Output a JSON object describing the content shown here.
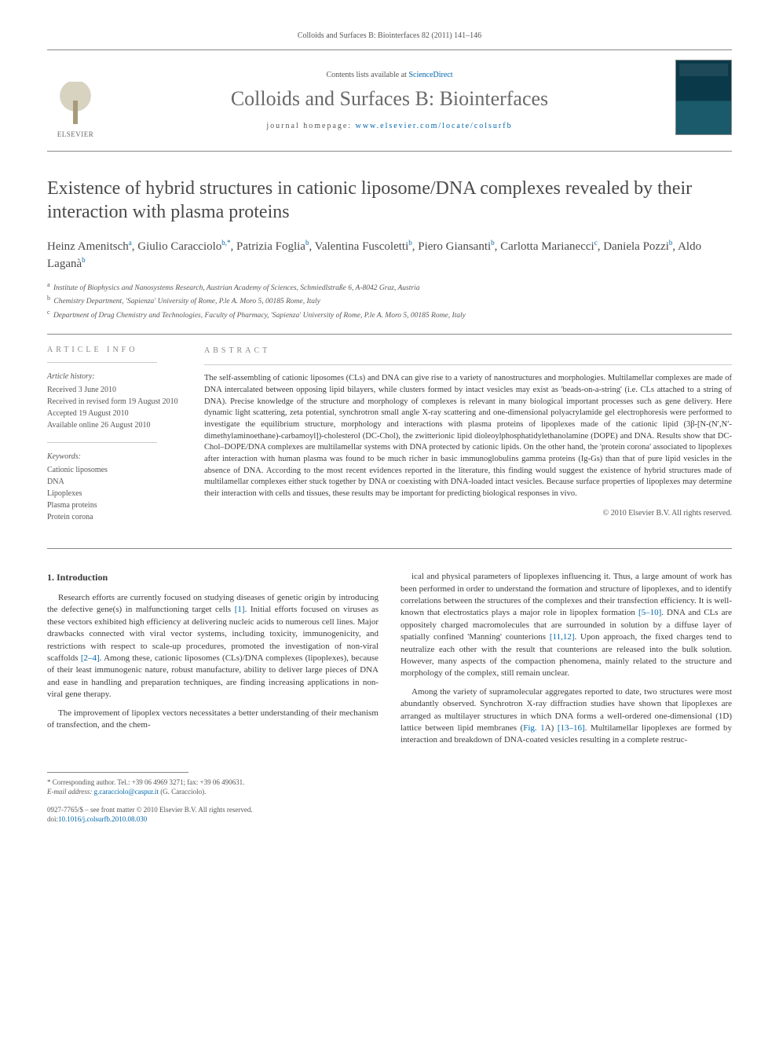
{
  "citation": "Colloids and Surfaces B: Biointerfaces 82 (2011) 141–146",
  "masthead": {
    "elsevier_label": "ELSEVIER",
    "contents_prefix": "Contents lists available at ",
    "contents_link": "ScienceDirect",
    "journal_name": "Colloids and Surfaces B: Biointerfaces",
    "homepage_prefix": "journal homepage: ",
    "homepage_url": "www.elsevier.com/locate/colsurfb"
  },
  "title": "Existence of hybrid structures in cationic liposome/DNA complexes revealed by their interaction with plasma proteins",
  "authors_html": "Heinz Amenitsch<sup>a</sup>, Giulio Caracciolo<sup>b,*</sup>, Patrizia Foglia<sup>b</sup>, Valentina Fuscoletti<sup>b</sup>, Piero Giansanti<sup>b</sup>, Carlotta Marianecci<sup>c</sup>, Daniela Pozzi<sup>b</sup>, Aldo Laganà<sup>b</sup>",
  "affiliations": [
    {
      "sup": "a",
      "text": "Institute of Biophysics and Nanosystems Research, Austrian Academy of Sciences, Schmiedlstraße 6, A-8042 Graz, Austria"
    },
    {
      "sup": "b",
      "text": "Chemistry Department, 'Sapienza' University of Rome, P.le A. Moro 5, 00185 Rome, Italy"
    },
    {
      "sup": "c",
      "text": "Department of Drug Chemistry and Technologies, Faculty of Pharmacy, 'Sapienza' University of Rome, P.le A. Moro 5, 00185 Rome, Italy"
    }
  ],
  "article_info": {
    "heading": "article info",
    "history_label": "Article history:",
    "history": [
      "Received 3 June 2010",
      "Received in revised form 19 August 2010",
      "Accepted 19 August 2010",
      "Available online 26 August 2010"
    ],
    "keywords_label": "Keywords:",
    "keywords": [
      "Cationic liposomes",
      "DNA",
      "Lipoplexes",
      "Plasma proteins",
      "Protein corona"
    ]
  },
  "abstract": {
    "heading": "abstract",
    "text": "The self-assembling of cationic liposomes (CLs) and DNA can give rise to a variety of nanostructures and morphologies. Multilamellar complexes are made of DNA intercalated between opposing lipid bilayers, while clusters formed by intact vesicles may exist as 'beads-on-a-string' (i.e. CLs attached to a string of DNA). Precise knowledge of the structure and morphology of complexes is relevant in many biological important processes such as gene delivery. Here dynamic light scattering, zeta potential, synchrotron small angle X-ray scattering and one-dimensional polyacrylamide gel electrophoresis were performed to investigate the equilibrium structure, morphology and interactions with plasma proteins of lipoplexes made of the cationic lipid (3β-[N-(N′,N′-dimethylaminoethane)-carbamoyl])-cholesterol (DC-Chol), the zwitterionic lipid dioleoylphosphatidylethanolamine (DOPE) and DNA. Results show that DC-Chol–DOPE/DNA complexes are multilamellar systems with DNA protected by cationic lipids. On the other hand, the 'protein corona' associated to lipoplexes after interaction with human plasma was found to be much richer in basic immunoglobulins gamma proteins (Ig-Gs) than that of pure lipid vesicles in the absence of DNA. According to the most recent evidences reported in the literature, this finding would suggest the existence of hybrid structures made of multilamellar complexes either stuck together by DNA or coexisting with DNA-loaded intact vesicles. Because surface properties of lipoplexes may determine their interaction with cells and tissues, these results may be important for predicting biological responses in vivo.",
    "copyright": "© 2010 Elsevier B.V. All rights reserved."
  },
  "body": {
    "section1_heading": "1. Introduction",
    "p1": "Research efforts are currently focused on studying diseases of genetic origin by introducing the defective gene(s) in malfunctioning target cells [1]. Initial efforts focused on viruses as these vectors exhibited high efficiency at delivering nucleic acids to numerous cell lines. Major drawbacks connected with viral vector systems, including toxicity, immunogenicity, and restrictions with respect to scale-up procedures, promoted the investigation of non-viral scaffolds [2–4]. Among these, cationic liposomes (CLs)/DNA complexes (lipoplexes), because of their least immunogenic nature, robust manufacture, ability to deliver large pieces of DNA and ease in handling and preparation techniques, are finding increasing applications in non-viral gene therapy.",
    "p2": "The improvement of lipoplex vectors necessitates a better understanding of their mechanism of transfection, and the chem-",
    "p3": "ical and physical parameters of lipoplexes influencing it. Thus, a large amount of work has been performed in order to understand the formation and structure of lipoplexes, and to identify correlations between the structures of the complexes and their transfection efficiency. It is well-known that electrostatics plays a major role in lipoplex formation [5–10]. DNA and CLs are oppositely charged macromolecules that are surrounded in solution by a diffuse layer of spatially confined 'Manning' counterions [11,12]. Upon approach, the fixed charges tend to neutralize each other with the result that counterions are released into the bulk solution. However, many aspects of the compaction phenomena, mainly related to the structure and morphology of the complex, still remain unclear.",
    "p4": "Among the variety of supramolecular aggregates reported to date, two structures were most abundantly observed. Synchrotron X-ray diffraction studies have shown that lipoplexes are arranged as multilayer structures in which DNA forms a well-ordered one-dimensional (1D) lattice between lipid membranes (Fig. 1A) [13–16]. Multilamellar lipoplexes are formed by interaction and breakdown of DNA-coated vesicles resulting in a complete restruc-"
  },
  "footer": {
    "corr_line1": "* Corresponding author. Tel.: +39 06 4969 3271; fax: +39 06 490631.",
    "corr_line2_label": "E-mail address: ",
    "corr_email": "g.caracciolo@caspur.it",
    "corr_line2_suffix": " (G. Caracciolo).",
    "issn_line": "0927-7765/$ – see front matter © 2010 Elsevier B.V. All rights reserved.",
    "doi_label": "doi:",
    "doi": "10.1016/j.colsurfb.2010.08.030"
  },
  "refs": {
    "r1": "[1]",
    "r24": "[2–4]",
    "r510": "[5–10]",
    "r1112": "[11,12]",
    "fig1a": "Fig. 1",
    "r1316": "[13–16]"
  }
}
